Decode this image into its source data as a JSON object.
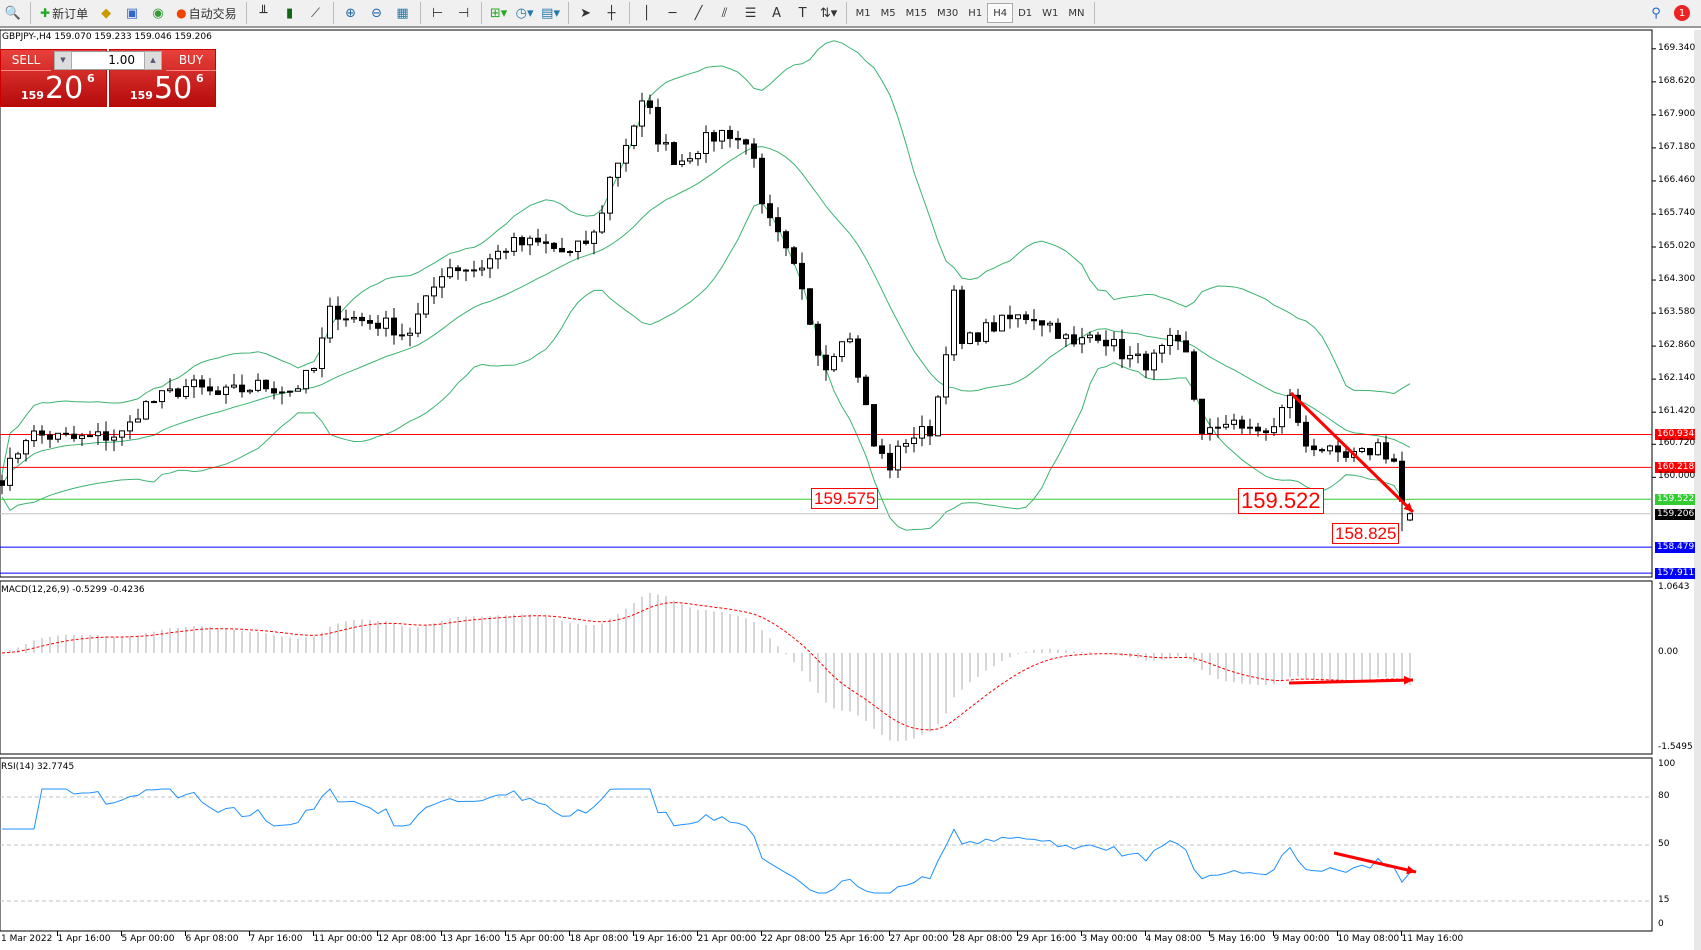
{
  "toolbar": {
    "new_order": "新订单",
    "auto_trading": "自动交易",
    "timeframes": [
      "M1",
      "M5",
      "M15",
      "M30",
      "H1",
      "H4",
      "D1",
      "W1",
      "MN"
    ],
    "active_timeframe": "H4",
    "notification_count": "1"
  },
  "chart": {
    "header": "GBPJPY-,H4  159.070 159.233 159.046 159.206",
    "symbol": "GBPJPY-",
    "timeframe": "H4",
    "ohlc": {
      "open": "159.070",
      "high": "159.233",
      "low": "159.046",
      "close": "159.206"
    }
  },
  "trade_panel": {
    "sell_label": "SELL",
    "buy_label": "BUY",
    "lot": "1.00",
    "sell_price": {
      "prefix": "159",
      "main": "20",
      "sup": "6"
    },
    "buy_price": {
      "prefix": "159",
      "main": "50",
      "sup": "6"
    }
  },
  "price_axis": [
    "169.340",
    "168.620",
    "167.900",
    "167.180",
    "166.460",
    "165.740",
    "165.020",
    "164.300",
    "163.580",
    "162.860",
    "162.140",
    "161.420",
    "160.720",
    "160.000"
  ],
  "levels": [
    {
      "value": "160.934",
      "color": "#ff0000"
    },
    {
      "value": "160.218",
      "color": "#ff0000"
    },
    {
      "value": "159.522",
      "color": "#33cc33"
    },
    {
      "value": "159.206",
      "color": "#000000",
      "line": "#c0c0c0"
    },
    {
      "value": "158.479",
      "color": "#0000ff"
    },
    {
      "value": "157.911",
      "color": "#0000ff"
    }
  ],
  "annotations": [
    "159.575",
    "159.522",
    "158.825"
  ],
  "macd": {
    "label": "MACD(12,26,9) -0.5299 -0.4236",
    "axis": [
      "1.0643",
      "0.00",
      "-1.5495"
    ]
  },
  "rsi": {
    "label": "RSI(14) 32.7745",
    "axis": [
      "100",
      "80",
      "50",
      "15",
      "0"
    ]
  },
  "time_axis": [
    "1 Mar 2022",
    "1 Apr 16:00",
    "5 Apr 00:00",
    "6 Apr 08:00",
    "7 Apr 16:00",
    "11 Apr 00:00",
    "12 Apr 08:00",
    "13 Apr 16:00",
    "15 Apr 00:00",
    "18 Apr 08:00",
    "19 Apr 16:00",
    "21 Apr 00:00",
    "22 Apr 08:00",
    "25 Apr 16:00",
    "27 Apr 00:00",
    "28 Apr 08:00",
    "29 Apr 16:00",
    "3 May 00:00",
    "4 May 08:00",
    "5 May 16:00",
    "9 May 00:00",
    "10 May 08:00",
    "11 May 16:00"
  ],
  "colors": {
    "bands": "#3cb371",
    "macd_signal": "#ff0000",
    "macd_hist": "#c0c0c0",
    "rsi": "#1e90ff",
    "arrow": "#ff0000"
  }
}
